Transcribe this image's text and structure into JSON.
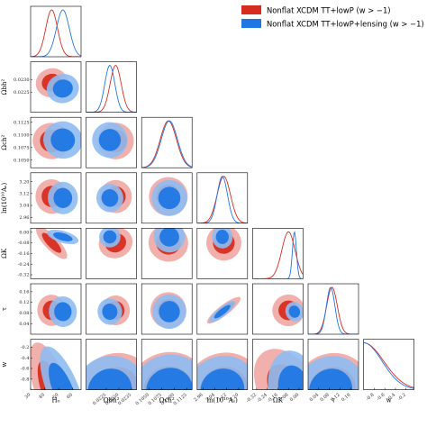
{
  "chart_data": {
    "type": "triangle",
    "legend": {
      "placement": "top-right",
      "entries": [
        {
          "label": "Nonflat XCDM TT+lowP ($w>-1$)",
          "display": "Nonflat XCDM TT+lowP (w > −1)",
          "color": "#d62d20"
        },
        {
          "label": "Nonflat XCDM TT+lowP+lensing ($w>-1$)",
          "display": "Nonflat XCDM TT+lowP+lensing (w > −1)",
          "color": "#1f77e4"
        }
      ]
    },
    "colors": {
      "red_inner": "#d62d20",
      "red_outer": "#f0a7a2",
      "blue_inner": "#1f77e4",
      "blue_outer": "#8fbdf2"
    },
    "params": [
      {
        "label": "H_0",
        "display": "H₀",
        "range": [
          30,
          66
        ],
        "ticks": [
          "30",
          "40",
          "50",
          "60"
        ],
        "mean": [
          45,
          53
        ],
        "sigma": [
          4.2,
          4.6
        ]
      },
      {
        "label": "\\Omega_b h^2",
        "display": "Ωbh²",
        "range": [
          0.0217,
          0.0237
        ],
        "ticks": [
          "0.0225",
          "0.0230",
          "0.0235"
        ],
        "mean": [
          0.02287,
          0.02264
        ],
        "sigma": [
          0.00022,
          0.0002
        ]
      },
      {
        "label": "\\Omega_c h^2",
        "display": "Ωch²",
        "range": [
          0.1035,
          0.1135
        ],
        "ticks": [
          "0.1050",
          "0.1075",
          "0.1100",
          "0.1125"
        ],
        "mean": [
          0.1088,
          0.109
        ],
        "sigma": [
          0.0016,
          0.0016
        ]
      },
      {
        "label": "\\ln(10^{10}A_s)",
        "display": "ln(10¹⁰Aₛ)",
        "range": [
          2.92,
          3.26
        ],
        "ticks": [
          "2.96",
          "3.04",
          "3.12",
          "3.20"
        ],
        "mean": [
          3.1,
          3.09
        ],
        "sigma": [
          0.045,
          0.035
        ]
      },
      {
        "label": "\\Omega_K",
        "display": "ΩK",
        "range": [
          -0.35,
          0.03
        ],
        "ticks": [
          "-0.32",
          "-0.24",
          "-0.16",
          "-0.08",
          "0.00"
        ],
        "mean": [
          -0.08,
          -0.035
        ],
        "sigma": [
          0.05,
          0.015
        ]
      },
      {
        "label": "\\tau",
        "display": "τ",
        "range": [
          0.0,
          0.19
        ],
        "ticks": [
          "0.04",
          "0.08",
          "0.12",
          "0.16"
        ],
        "mean": [
          0.09,
          0.085
        ],
        "sigma": [
          0.02,
          0.016
        ]
      },
      {
        "label": "w",
        "display": "w",
        "range": [
          -1.0,
          -0.05
        ],
        "ticks": [
          "-0.8",
          "-0.6",
          "-0.4",
          "-0.2"
        ],
        "mean": [
          -1.0,
          -1.0
        ],
        "sigma": [
          0.38,
          0.35
        ]
      }
    ],
    "xlabels_bottom": [
      "H_0",
      "\\Omega_b h^2",
      "\\Omega_c h^2",
      "\\ln(10^{10}A_s)",
      "\\Omega_K",
      "\\tau",
      "w"
    ],
    "ylabels_left": [
      "\\Omega_b h^2",
      "\\Omega_c h^2",
      "\\ln(10^{10}A_s)",
      "\\Omega_K",
      "\\tau",
      "w"
    ],
    "ylabels_display": [
      "Ωbh²",
      "Ωch²",
      "ln(10¹⁰Aₛ)",
      "ΩK",
      "τ",
      "w"
    ],
    "xlabels_display": [
      "H₀",
      "Ωbh²",
      "Ωch²",
      "ln(10¹⁰Aₛ)",
      "ΩK",
      "τ",
      "w"
    ],
    "ytick_rows": [
      [
        "0.0225",
        "0.0230"
      ],
      [
        "0.1050",
        "0.1075",
        "0.1100",
        "0.1125"
      ],
      [
        "2.96",
        "3.04",
        "3.12",
        "3.20"
      ],
      [
        "-0.32",
        "-0.24",
        "-0.16",
        "-0.08",
        "0.00"
      ],
      [
        "0.04",
        "0.08",
        "0.12",
        "0.16"
      ],
      [
        "-0.8",
        "-0.6",
        "-0.4",
        "-0.2"
      ]
    ],
    "correlations": {
      "0-4": -0.92,
      "0-6": -0.85,
      "0-1": 0.3,
      "0-2": -0.2,
      "0-3": 0.1,
      "0-5": 0.1,
      "3-5": 0.97,
      "1-4": 0.3,
      "2-4": -0.2,
      "4-6": -0.5,
      "5-4": 0.2
    }
  }
}
